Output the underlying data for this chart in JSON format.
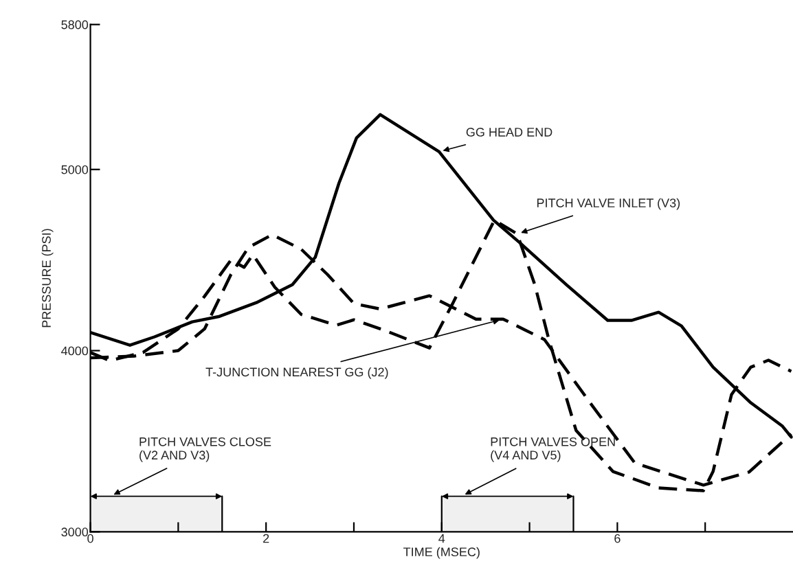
{
  "chart_data": {
    "type": "line",
    "xlabel": "TIME (MSEC)",
    "ylabel": "PRESSURE (PSI)",
    "xlim": [
      0,
      8
    ],
    "ylim": [
      3000,
      5800
    ],
    "xticks": [
      0,
      {
        "value": 1,
        "label": null
      },
      2,
      {
        "value": 3,
        "label": null
      },
      4,
      {
        "value": 5,
        "label": null
      },
      6,
      {
        "value": 7,
        "label": null
      }
    ],
    "yticks": [
      3000,
      4000,
      5000,
      5800
    ],
    "grid": false,
    "legend": false,
    "series": [
      {
        "name": "GG HEAD END",
        "color": "#000000",
        "line_style": "solid",
        "x": [
          0,
          0.45,
          0.73,
          1.16,
          1.47,
          1.89,
          2.3,
          2.56,
          2.83,
          3.03,
          3.3,
          3.97,
          4.59,
          4.9,
          5.42,
          5.89,
          6.16,
          6.47,
          6.73,
          7.09,
          7.52,
          7.88,
          7.98
        ],
        "values": [
          4100,
          4030,
          4076,
          4159,
          4189,
          4265,
          4364,
          4515,
          4924,
          5174,
          5303,
          5098,
          4720,
          4591,
          4364,
          4167,
          4167,
          4212,
          4136,
          3909,
          3712,
          3583,
          3523
        ]
      },
      {
        "name": "PITCH VALVE INLET (V3)",
        "color": "#000000",
        "line_style": "dashed",
        "x": [
          0,
          0.22,
          0.6,
          1.0,
          1.3,
          1.6,
          1.75,
          1.85,
          2.1,
          2.4,
          2.8,
          3.0,
          3.34,
          3.86,
          4.13,
          4.6,
          4.86,
          5.06,
          5.22,
          5.53,
          5.95,
          6.47,
          6.98,
          7.09,
          7.3,
          7.52,
          7.72,
          7.98
        ],
        "values": [
          3990,
          3945,
          3990,
          4120,
          4300,
          4500,
          4460,
          4530,
          4350,
          4200,
          4140,
          4170,
          4114,
          4015,
          4265,
          4720,
          4644,
          4364,
          4061,
          3560,
          3333,
          3242,
          3227,
          3333,
          3758,
          3909,
          3947,
          3886
        ]
      },
      {
        "name": "T-JUNCTION NEAREST GG (J2)",
        "color": "#000000",
        "line_style": "dashed",
        "x": [
          0,
          0.5,
          1.0,
          1.3,
          1.6,
          1.8,
          2.07,
          2.4,
          2.7,
          3.0,
          3.3,
          3.86,
          4.39,
          4.7,
          5.17,
          5.69,
          6.2,
          6.98,
          7.5,
          7.98
        ],
        "values": [
          3960,
          3970,
          4000,
          4120,
          4420,
          4570,
          4640,
          4560,
          4420,
          4260,
          4230,
          4303,
          4174,
          4174,
          4061,
          3712,
          3379,
          3258,
          3330,
          3540
        ]
      }
    ],
    "bands": [
      {
        "axis": "x",
        "from": 0,
        "to": 1.5,
        "label": "PITCH VALVES CLOSE\n(V2 AND V3)",
        "color": "#000000"
      },
      {
        "axis": "x",
        "from": 4,
        "to": 5.5,
        "label": "PITCH VALVES OPEN\n(V4 AND V5)",
        "color": "#000000"
      }
    ]
  }
}
